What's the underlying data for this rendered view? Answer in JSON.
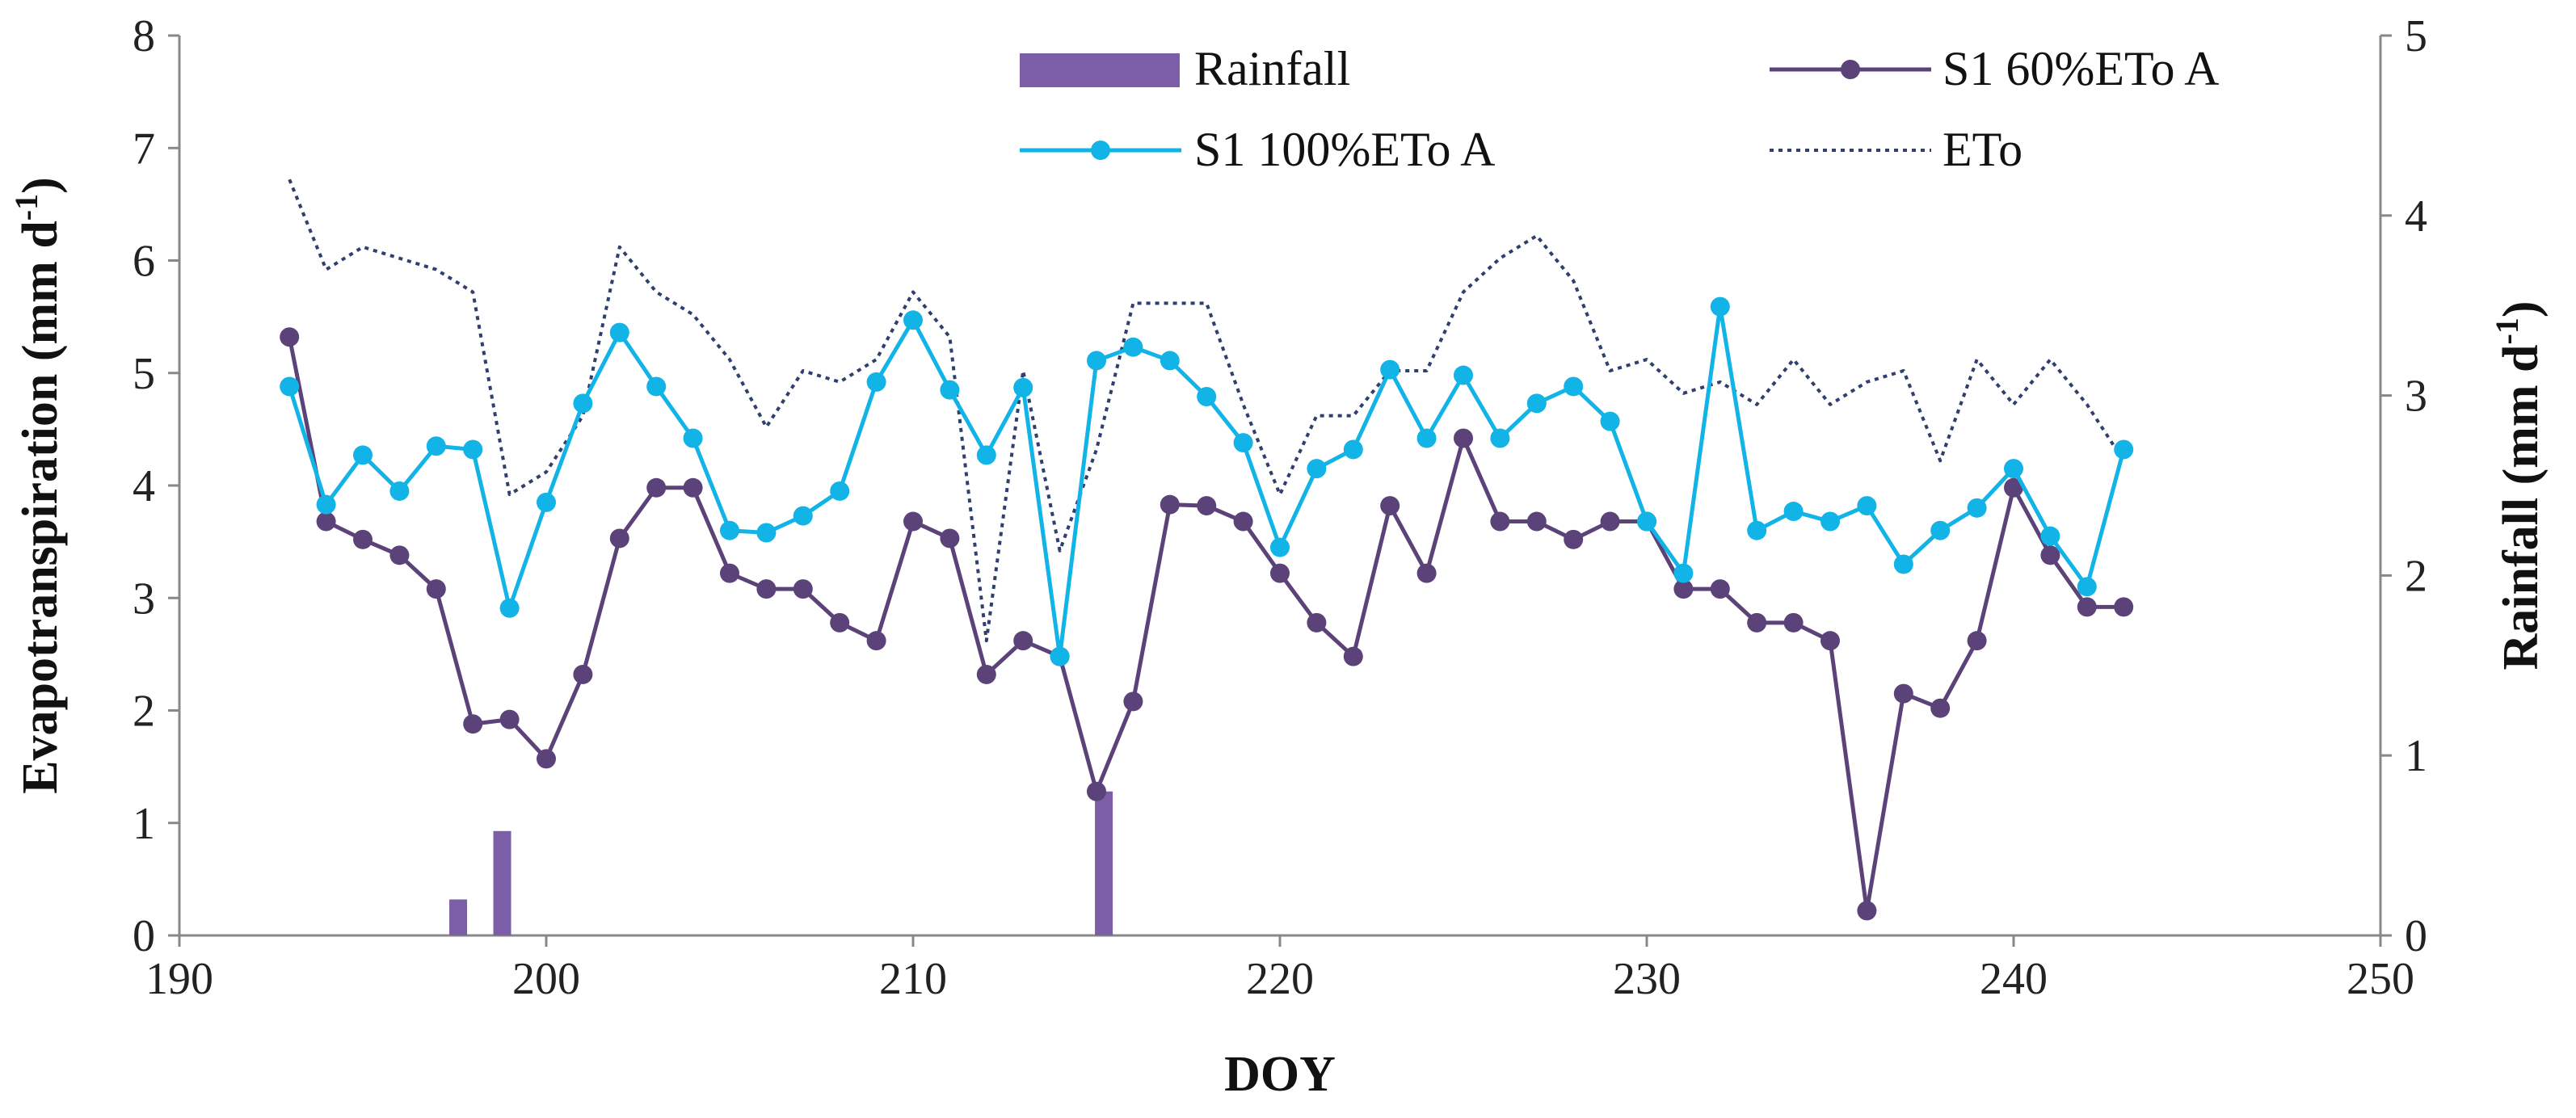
{
  "chart_data": {
    "type": "line",
    "title": "",
    "xlabel": "DOY",
    "ylabel": "Evapotranspiration (mm d",
    "ylabel_sup": "-1",
    "ylabel_close": ")",
    "y2label": "Rainfall (mm d",
    "y2label_sup": "-1",
    "y2label_close": ")",
    "xlim": [
      190,
      250
    ],
    "ylim": [
      0,
      8
    ],
    "y2lim": [
      0,
      5
    ],
    "xticks": [
      "190",
      "200",
      "210",
      "220",
      "230",
      "240",
      "250"
    ],
    "yticks": [
      "0",
      "1",
      "2",
      "3",
      "4",
      "5",
      "6",
      "7",
      "8"
    ],
    "y2ticks": [
      "0",
      "1",
      "2",
      "3",
      "4",
      "5"
    ],
    "grid": false,
    "legend": [
      "Rainfall",
      "S1 60%ETo A",
      "S1 100%ETo A",
      "ETo"
    ],
    "colors": {
      "rainfall": "#7b5ea7",
      "s1_60": "#5b4379",
      "s1_100": "#12b3e6",
      "eto": "#2f3f6e",
      "axis": "#888888"
    },
    "x": [
      193,
      194,
      195,
      196,
      197,
      198,
      199,
      200,
      201,
      202,
      203,
      204,
      205,
      206,
      207,
      208,
      209,
      210,
      211,
      212,
      213,
      214,
      215,
      216,
      217,
      218,
      219,
      220,
      221,
      222,
      223,
      224,
      225,
      226,
      227,
      228,
      229,
      230,
      231,
      232,
      233,
      234,
      235,
      236,
      237,
      238,
      239,
      240,
      241,
      242,
      243
    ],
    "series": [
      {
        "name": "S1 60%ETo A",
        "axis": "left",
        "style": "line-marker",
        "values": [
          5.32,
          3.68,
          3.52,
          3.38,
          3.08,
          1.88,
          1.92,
          1.57,
          2.32,
          3.53,
          3.98,
          3.98,
          3.22,
          3.08,
          3.08,
          2.78,
          2.62,
          3.68,
          3.53,
          2.32,
          2.62,
          2.48,
          1.28,
          2.08,
          3.83,
          3.82,
          3.68,
          3.22,
          2.78,
          2.48,
          3.82,
          3.22,
          4.42,
          3.68,
          3.68,
          3.52,
          3.68,
          3.68,
          3.08,
          3.08,
          2.78,
          2.78,
          2.62,
          0.22,
          2.15,
          2.02,
          2.62,
          3.98,
          3.38,
          2.92,
          2.92
        ]
      },
      {
        "name": "S1 100%ETo A",
        "axis": "left",
        "style": "line-marker",
        "values": [
          4.88,
          3.83,
          4.27,
          3.95,
          4.35,
          4.32,
          2.91,
          3.85,
          4.73,
          5.36,
          4.88,
          4.42,
          3.6,
          3.58,
          3.73,
          3.95,
          4.92,
          5.47,
          4.85,
          4.27,
          4.87,
          2.48,
          5.11,
          5.23,
          5.11,
          4.79,
          4.38,
          3.45,
          4.15,
          4.32,
          5.03,
          4.42,
          4.98,
          4.42,
          4.73,
          4.88,
          4.57,
          3.68,
          3.22,
          5.59,
          3.6,
          3.77,
          3.68,
          3.82,
          3.3,
          3.6,
          3.8,
          4.15,
          3.55,
          3.1,
          4.32
        ]
      },
      {
        "name": "ETo",
        "axis": "left",
        "style": "dotted",
        "values": [
          6.72,
          5.92,
          6.12,
          6.02,
          5.92,
          5.72,
          3.92,
          4.12,
          4.62,
          6.12,
          5.72,
          5.52,
          5.12,
          4.52,
          5.02,
          4.92,
          5.12,
          5.72,
          5.32,
          2.62,
          5.02,
          3.42,
          4.32,
          5.62,
          5.62,
          5.62,
          4.72,
          3.92,
          4.62,
          4.62,
          5.02,
          5.02,
          5.72,
          6.02,
          6.22,
          5.82,
          5.02,
          5.12,
          4.82,
          4.92,
          4.72,
          5.12,
          4.72,
          4.92,
          5.02,
          4.22,
          5.12,
          4.72,
          5.12,
          4.72,
          4.22
        ]
      }
    ],
    "rainfall": {
      "name": "Rainfall",
      "axis": "right",
      "style": "bar",
      "x": [
        197.6,
        198.8,
        215.2
      ],
      "values": [
        0.2,
        0.58,
        0.8
      ]
    }
  }
}
